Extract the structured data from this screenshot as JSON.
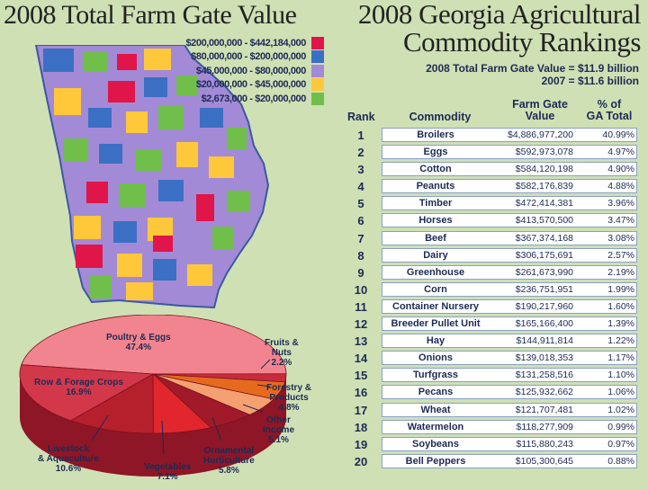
{
  "left_title": "2008 Total Farm Gate Value",
  "right_title_line1": "2008 Georgia Agricultural",
  "right_title_line2": "Commodity Rankings",
  "totals": {
    "line1": "2008 Total Farm Gate Value = $11.9 billion",
    "line2": "2007 = $11.6 billion"
  },
  "colors": {
    "background": "#cfe0b4",
    "range_top": "#e0154a",
    "range_2": "#3b6fc4",
    "range_3": "#a38ad6",
    "range_4": "#ffc83a",
    "range_5": "#6fbf4a",
    "state_border": "#3a5aa0"
  },
  "map_legend": [
    {
      "label": "$200,000,000 - $442,184,000",
      "color": "#e0154a"
    },
    {
      "label": "$80,000,000 - $200,000,000",
      "color": "#3b6fc4"
    },
    {
      "label": "$45,000,000 - $80,000,000",
      "color": "#a38ad6"
    },
    {
      "label": "$20,000,000 - $45,000,000",
      "color": "#ffc83a"
    },
    {
      "label": "$2,673,000 - $20,000,000",
      "color": "#6fbf4a"
    }
  ],
  "chart_data": [
    {
      "type": "pie",
      "title": "",
      "slices": [
        {
          "label": "Poultry & Eggs",
          "pct_label": "47.4%",
          "value": 47.4,
          "color": "#f2848f"
        },
        {
          "label": "Fruits & Nuts",
          "pct_label": "2.2%",
          "value": 2.2,
          "color": "#c82c3c"
        },
        {
          "label": "Forestry & Products",
          "pct_label": "4.8%",
          "value": 4.8,
          "color": "#e66a1e"
        },
        {
          "label": "Other Income",
          "pct_label": "5.1%",
          "value": 5.1,
          "color": "#f4a070"
        },
        {
          "label": "Ornamental Horticulture",
          "pct_label": "5.8%",
          "value": 5.8,
          "color": "#a01a2a"
        },
        {
          "label": "Vegetables",
          "pct_label": "7.1%",
          "value": 7.1,
          "color": "#e2262e"
        },
        {
          "label": "Livestock & Aquaculture",
          "pct_label": "10.6%",
          "value": 10.6,
          "color": "#b5202c"
        },
        {
          "label": "Row & Forage Crops",
          "pct_label": "16.9%",
          "value": 16.9,
          "color": "#d3384a"
        }
      ]
    },
    {
      "type": "table",
      "title": "2008 Georgia Agricultural Commodity Rankings",
      "columns": [
        "Rank",
        "Commodity",
        "Farm Gate Value",
        "% of GA Total"
      ],
      "col_rank": "Rank",
      "col_commodity": "Commodity",
      "col_value_1": "Farm Gate",
      "col_value_2": "Value",
      "col_pct_1": "% of",
      "col_pct_2": "GA Total",
      "rows": [
        {
          "rank": "1",
          "commodity": "Broilers",
          "value": "$4,886,977,200",
          "pct": "40.99%"
        },
        {
          "rank": "2",
          "commodity": "Eggs",
          "value": "$592,973,078",
          "pct": "4.97%"
        },
        {
          "rank": "3",
          "commodity": "Cotton",
          "value": "$584,120,198",
          "pct": "4.90%"
        },
        {
          "rank": "4",
          "commodity": "Peanuts",
          "value": "$582,176,839",
          "pct": "4.88%"
        },
        {
          "rank": "5",
          "commodity": "Timber",
          "value": "$472,414,381",
          "pct": "3.96%"
        },
        {
          "rank": "6",
          "commodity": "Horses",
          "value": "$413,570,500",
          "pct": "3.47%"
        },
        {
          "rank": "7",
          "commodity": "Beef",
          "value": "$367,374,168",
          "pct": "3.08%"
        },
        {
          "rank": "8",
          "commodity": "Dairy",
          "value": "$306,175,691",
          "pct": "2.57%"
        },
        {
          "rank": "9",
          "commodity": "Greenhouse",
          "value": "$261,673,990",
          "pct": "2.19%"
        },
        {
          "rank": "10",
          "commodity": "Corn",
          "value": "$236,751,951",
          "pct": "1.99%"
        },
        {
          "rank": "11",
          "commodity": "Container Nursery",
          "value": "$190,217,960",
          "pct": "1.60%"
        },
        {
          "rank": "12",
          "commodity": "Breeder Pullet Unit",
          "value": "$165,166,400",
          "pct": "1.39%"
        },
        {
          "rank": "13",
          "commodity": "Hay",
          "value": "$144,911,814",
          "pct": "1.22%"
        },
        {
          "rank": "14",
          "commodity": "Onions",
          "value": "$139,018,353",
          "pct": "1.17%"
        },
        {
          "rank": "15",
          "commodity": "Turfgrass",
          "value": "$131,258,516",
          "pct": "1.10%"
        },
        {
          "rank": "16",
          "commodity": "Pecans",
          "value": "$125,932,662",
          "pct": "1.06%"
        },
        {
          "rank": "17",
          "commodity": "Wheat",
          "value": "$121,707,481",
          "pct": "1.02%"
        },
        {
          "rank": "18",
          "commodity": "Watermelon",
          "value": "$118,277,909",
          "pct": "0.99%"
        },
        {
          "rank": "19",
          "commodity": "Soybeans",
          "value": "$115,880,243",
          "pct": "0.97%"
        },
        {
          "rank": "20",
          "commodity": "Bell Peppers",
          "value": "$105,300,645",
          "pct": "0.88%"
        }
      ]
    }
  ]
}
